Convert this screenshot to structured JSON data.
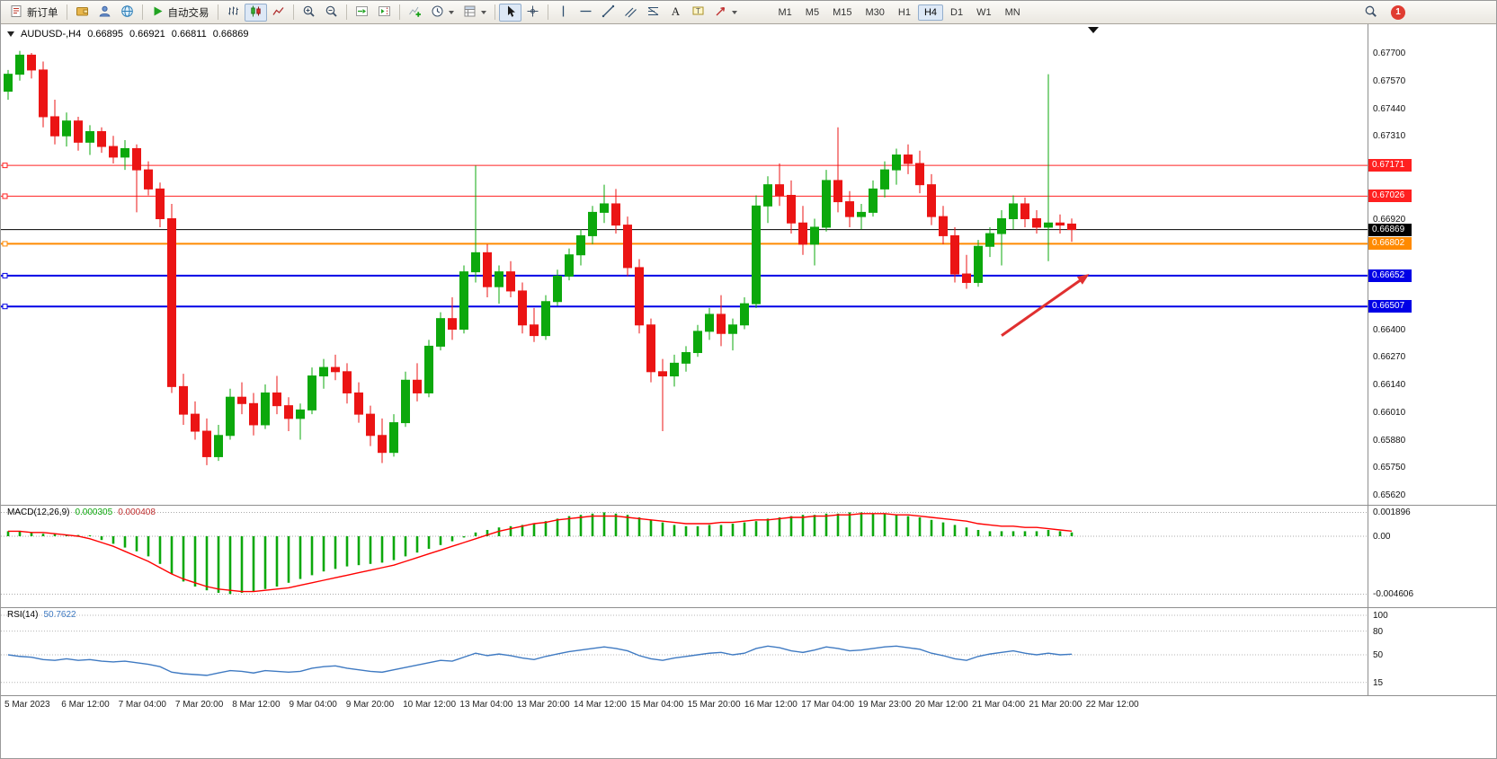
{
  "chart_header": {
    "symbol": "AUDUSD-,H4",
    "open": "0.66895",
    "high": "0.66921",
    "low": "0.66811",
    "close": "0.66869"
  },
  "toolbar": {
    "new_order": "新订单",
    "auto_trading": "自动交易",
    "timeframes": [
      "M1",
      "M5",
      "M15",
      "M30",
      "H1",
      "H4",
      "D1",
      "W1",
      "MN"
    ],
    "active_timeframe": "H4",
    "notification_count": "1",
    "icons": [
      "new-order",
      "wallet",
      "user",
      "globe",
      "auto-trading-play",
      "bar-chart",
      "candlestick",
      "line-chart",
      "zoom-in",
      "zoom-out",
      "auto-scroll",
      "chart-shift",
      "indicators",
      "periods",
      "templates",
      "cursor",
      "crosshair",
      "vertical-line",
      "horizontal-line",
      "trendline",
      "equidistant-channel",
      "fibonacci",
      "text",
      "text-label",
      "arrows",
      "search",
      "notification"
    ]
  },
  "chart_data": {
    "type": "candlestick",
    "symbol": "AUDUSD-",
    "timeframe": "H4",
    "colors": {
      "up": "#0CA80C",
      "down": "#EB1414",
      "macd_histogram": "#0CA80C",
      "macd_signal": "#FF0000",
      "rsi_line": "#3F7AC2"
    },
    "price_axis_ticks": [
      "0.67700",
      "0.67570",
      "0.67440",
      "0.67310",
      "0.66920",
      "0.66400",
      "0.66270",
      "0.66140",
      "0.66010",
      "0.65880",
      "0.65750",
      "0.65620"
    ],
    "horizontal_lines": [
      {
        "price": 0.67171,
        "label": "0.67171",
        "color": "#FF2020",
        "width": 1
      },
      {
        "price": 0.67026,
        "label": "0.67026",
        "color": "#FF2020",
        "width": 1
      },
      {
        "price": 0.66869,
        "label": "0.66869",
        "color": "#000000",
        "width": 1,
        "is_current_price": true
      },
      {
        "price": 0.66802,
        "label": "0.66802",
        "color": "#FF8A00",
        "width": 2
      },
      {
        "price": 0.66652,
        "label": "0.66652",
        "color": "#0000E6",
        "width": 2
      },
      {
        "price": 0.66507,
        "label": "0.66507",
        "color": "#0000E6",
        "width": 2
      }
    ],
    "arrow_annotation": {
      "color": "#E03030",
      "from_bar": 85,
      "from_price": 0.6637,
      "to_bar": 92.5,
      "to_price": 0.6666
    },
    "candles": [
      [
        0.6752,
        0.6762,
        0.6748,
        0.676
      ],
      [
        0.676,
        0.6771,
        0.6757,
        0.6769
      ],
      [
        0.6769,
        0.677,
        0.6758,
        0.6762
      ],
      [
        0.6762,
        0.6766,
        0.6735,
        0.674
      ],
      [
        0.674,
        0.6748,
        0.6727,
        0.6731
      ],
      [
        0.6731,
        0.6742,
        0.6726,
        0.6738
      ],
      [
        0.6738,
        0.674,
        0.6724,
        0.6728
      ],
      [
        0.6728,
        0.6736,
        0.6722,
        0.6733
      ],
      [
        0.6733,
        0.6735,
        0.6723,
        0.6726
      ],
      [
        0.6726,
        0.6731,
        0.6718,
        0.6721
      ],
      [
        0.6721,
        0.6729,
        0.6715,
        0.6725
      ],
      [
        0.6725,
        0.6727,
        0.6695,
        0.6715
      ],
      [
        0.6715,
        0.6719,
        0.6703,
        0.6706
      ],
      [
        0.6706,
        0.6709,
        0.6688,
        0.6692
      ],
      [
        0.6692,
        0.6699,
        0.661,
        0.6613
      ],
      [
        0.6613,
        0.6619,
        0.6595,
        0.66
      ],
      [
        0.66,
        0.6606,
        0.6588,
        0.6592
      ],
      [
        0.6592,
        0.6598,
        0.6576,
        0.658
      ],
      [
        0.658,
        0.6595,
        0.6578,
        0.659
      ],
      [
        0.659,
        0.6612,
        0.6588,
        0.6608
      ],
      [
        0.6608,
        0.6615,
        0.66,
        0.6605
      ],
      [
        0.6605,
        0.661,
        0.659,
        0.6595
      ],
      [
        0.6595,
        0.6614,
        0.6593,
        0.661
      ],
      [
        0.661,
        0.6618,
        0.66,
        0.6604
      ],
      [
        0.6604,
        0.6608,
        0.6592,
        0.6598
      ],
      [
        0.6598,
        0.6605,
        0.6588,
        0.6602
      ],
      [
        0.6602,
        0.6622,
        0.66,
        0.6618
      ],
      [
        0.6618,
        0.6626,
        0.6612,
        0.6622
      ],
      [
        0.6622,
        0.6628,
        0.6616,
        0.662
      ],
      [
        0.662,
        0.6624,
        0.6605,
        0.661
      ],
      [
        0.661,
        0.6615,
        0.6596,
        0.66
      ],
      [
        0.66,
        0.6604,
        0.6585,
        0.659
      ],
      [
        0.659,
        0.6598,
        0.6577,
        0.6582
      ],
      [
        0.6582,
        0.66,
        0.658,
        0.6596
      ],
      [
        0.6596,
        0.662,
        0.6594,
        0.6616
      ],
      [
        0.6616,
        0.6624,
        0.6606,
        0.661
      ],
      [
        0.661,
        0.6635,
        0.6608,
        0.6632
      ],
      [
        0.6632,
        0.6648,
        0.663,
        0.6645
      ],
      [
        0.6645,
        0.6655,
        0.6635,
        0.664
      ],
      [
        0.664,
        0.667,
        0.6638,
        0.6667
      ],
      [
        0.6667,
        0.6717,
        0.6662,
        0.6676
      ],
      [
        0.6676,
        0.668,
        0.6655,
        0.666
      ],
      [
        0.666,
        0.667,
        0.6652,
        0.6667
      ],
      [
        0.6667,
        0.6672,
        0.6655,
        0.6658
      ],
      [
        0.6658,
        0.6662,
        0.6638,
        0.6642
      ],
      [
        0.6642,
        0.665,
        0.6634,
        0.6637
      ],
      [
        0.6637,
        0.6656,
        0.6635,
        0.6653
      ],
      [
        0.6653,
        0.6668,
        0.6651,
        0.6665
      ],
      [
        0.6665,
        0.6678,
        0.6663,
        0.6675
      ],
      [
        0.6675,
        0.6687,
        0.667,
        0.6684
      ],
      [
        0.6684,
        0.6698,
        0.668,
        0.6695
      ],
      [
        0.6695,
        0.6708,
        0.669,
        0.6699
      ],
      [
        0.6699,
        0.6706,
        0.6685,
        0.6689
      ],
      [
        0.6689,
        0.6693,
        0.6665,
        0.6669
      ],
      [
        0.6669,
        0.6673,
        0.6638,
        0.6642
      ],
      [
        0.6642,
        0.6645,
        0.6615,
        0.662
      ],
      [
        0.662,
        0.6626,
        0.6592,
        0.6618
      ],
      [
        0.6618,
        0.6628,
        0.6613,
        0.6624
      ],
      [
        0.6624,
        0.6632,
        0.662,
        0.6629
      ],
      [
        0.6629,
        0.6642,
        0.6627,
        0.6639
      ],
      [
        0.6639,
        0.665,
        0.6635,
        0.6647
      ],
      [
        0.6647,
        0.6656,
        0.6632,
        0.6638
      ],
      [
        0.6638,
        0.6645,
        0.663,
        0.6642
      ],
      [
        0.6642,
        0.6655,
        0.664,
        0.6652
      ],
      [
        0.6652,
        0.6703,
        0.665,
        0.6698
      ],
      [
        0.6698,
        0.6712,
        0.669,
        0.6708
      ],
      [
        0.6708,
        0.6718,
        0.6698,
        0.6703
      ],
      [
        0.6703,
        0.671,
        0.6685,
        0.669
      ],
      [
        0.669,
        0.6698,
        0.6675,
        0.668
      ],
      [
        0.668,
        0.6692,
        0.667,
        0.6688
      ],
      [
        0.6688,
        0.6715,
        0.6686,
        0.671
      ],
      [
        0.671,
        0.6735,
        0.6695,
        0.67
      ],
      [
        0.67,
        0.6705,
        0.6688,
        0.6693
      ],
      [
        0.6693,
        0.6699,
        0.6687,
        0.6695
      ],
      [
        0.6695,
        0.671,
        0.6693,
        0.6706
      ],
      [
        0.6706,
        0.6719,
        0.6702,
        0.6715
      ],
      [
        0.6715,
        0.6725,
        0.6708,
        0.6722
      ],
      [
        0.6722,
        0.6727,
        0.6713,
        0.6718
      ],
      [
        0.6718,
        0.6724,
        0.6704,
        0.6708
      ],
      [
        0.6708,
        0.6713,
        0.6689,
        0.6693
      ],
      [
        0.6693,
        0.6698,
        0.668,
        0.6684
      ],
      [
        0.6684,
        0.6688,
        0.6662,
        0.6666
      ],
      [
        0.6666,
        0.6675,
        0.6659,
        0.6662
      ],
      [
        0.6662,
        0.6682,
        0.666,
        0.6679
      ],
      [
        0.6679,
        0.6688,
        0.6674,
        0.6685
      ],
      [
        0.6685,
        0.6696,
        0.667,
        0.6692
      ],
      [
        0.6692,
        0.6703,
        0.6687,
        0.6699
      ],
      [
        0.6699,
        0.6702,
        0.6688,
        0.6692
      ],
      [
        0.6692,
        0.6696,
        0.6685,
        0.6688
      ],
      [
        0.6688,
        0.676,
        0.6672,
        0.669
      ],
      [
        0.669,
        0.6694,
        0.6685,
        0.6689
      ],
      [
        0.66895,
        0.66921,
        0.66811,
        0.66869
      ]
    ],
    "time_axis": [
      "5 Mar 2023",
      "6 Mar 12:00",
      "7 Mar 04:00",
      "7 Mar 20:00",
      "8 Mar 12:00",
      "9 Mar 04:00",
      "9 Mar 20:00",
      "10 Mar 12:00",
      "13 Mar 04:00",
      "13 Mar 20:00",
      "14 Mar 12:00",
      "15 Mar 04:00",
      "15 Mar 20:00",
      "16 Mar 12:00",
      "17 Mar 04:00",
      "19 Mar 23:00",
      "20 Mar 12:00",
      "21 Mar 04:00",
      "21 Mar 20:00",
      "22 Mar 12:00"
    ],
    "macd": {
      "name": "MACD(12,26,9)",
      "main_value": "0.000305",
      "signal_value": "0.000408",
      "axis_labels": [
        "0.001896",
        "0.00",
        "-0.004606"
      ],
      "histogram": [
        0.0004,
        0.0004,
        0.0003,
        0.0002,
        0.0002,
        0.0001,
        0.0001,
        0.0,
        -0.0003,
        -0.0006,
        -0.0009,
        -0.0012,
        -0.0016,
        -0.0022,
        -0.003,
        -0.0036,
        -0.004,
        -0.0043,
        -0.0045,
        -0.0046,
        -0.0045,
        -0.0044,
        -0.0042,
        -0.004,
        -0.0037,
        -0.0034,
        -0.0031,
        -0.0028,
        -0.0026,
        -0.0024,
        -0.0023,
        -0.0022,
        -0.0021,
        -0.0019,
        -0.0016,
        -0.0013,
        -0.001,
        -0.0007,
        -0.0004,
        -0.0001,
        0.0003,
        0.0005,
        0.0007,
        0.0008,
        0.0009,
        0.001,
        0.0012,
        0.0014,
        0.0016,
        0.0017,
        0.0018,
        0.0019,
        0.0018,
        0.0017,
        0.0015,
        0.0013,
        0.0011,
        0.0009,
        0.0008,
        0.0008,
        0.0009,
        0.0009,
        0.001,
        0.0011,
        0.0012,
        0.0014,
        0.0015,
        0.0016,
        0.0017,
        0.0017,
        0.0018,
        0.0018,
        0.0019,
        0.0019,
        0.0018,
        0.0018,
        0.0017,
        0.0016,
        0.0015,
        0.0013,
        0.0011,
        0.0009,
        0.0007,
        0.0005,
        0.0004,
        0.0004,
        0.0004,
        0.0004,
        0.0004,
        0.0005,
        0.0004,
        0.000305
      ],
      "signal": [
        0.0004,
        0.0004,
        0.0003,
        0.0003,
        0.0002,
        0.0001,
        0.0,
        -0.0002,
        -0.0005,
        -0.0008,
        -0.0012,
        -0.0016,
        -0.002,
        -0.0025,
        -0.003,
        -0.0034,
        -0.0037,
        -0.004,
        -0.0042,
        -0.0043,
        -0.0044,
        -0.0044,
        -0.0043,
        -0.0042,
        -0.0041,
        -0.0039,
        -0.0037,
        -0.0035,
        -0.0033,
        -0.0031,
        -0.0029,
        -0.0027,
        -0.0025,
        -0.0023,
        -0.002,
        -0.0017,
        -0.0014,
        -0.0011,
        -0.0008,
        -0.0005,
        -0.0002,
        0.0001,
        0.0004,
        0.0006,
        0.0008,
        0.001,
        0.0011,
        0.0013,
        0.0014,
        0.0015,
        0.0016,
        0.0016,
        0.0016,
        0.0015,
        0.0014,
        0.0013,
        0.0012,
        0.0011,
        0.001,
        0.001,
        0.001,
        0.0011,
        0.0011,
        0.0012,
        0.0013,
        0.0013,
        0.0014,
        0.0015,
        0.0015,
        0.0016,
        0.0016,
        0.0017,
        0.0017,
        0.0018,
        0.0018,
        0.0018,
        0.0017,
        0.0017,
        0.0016,
        0.0015,
        0.0014,
        0.0013,
        0.0012,
        0.001,
        0.0009,
        0.0008,
        0.0008,
        0.0007,
        0.0007,
        0.0006,
        0.0005,
        0.000408
      ]
    },
    "rsi": {
      "name": "RSI(14)",
      "value": "50.7622",
      "levels": [
        "100",
        "80",
        "50",
        "15"
      ],
      "values": [
        50,
        48,
        47,
        44,
        43,
        45,
        43,
        44,
        42,
        41,
        42,
        40,
        38,
        35,
        28,
        26,
        25,
        24,
        27,
        30,
        29,
        27,
        30,
        29,
        28,
        29,
        33,
        35,
        36,
        33,
        31,
        29,
        28,
        31,
        34,
        37,
        40,
        43,
        42,
        47,
        52,
        49,
        51,
        49,
        46,
        44,
        48,
        51,
        54,
        56,
        58,
        60,
        58,
        55,
        49,
        45,
        43,
        46,
        48,
        50,
        52,
        53,
        50,
        52,
        58,
        61,
        59,
        55,
        53,
        56,
        60,
        58,
        55,
        56,
        58,
        60,
        61,
        59,
        57,
        52,
        49,
        45,
        43,
        48,
        51,
        53,
        55,
        52,
        50,
        52,
        50,
        50.76
      ]
    }
  }
}
